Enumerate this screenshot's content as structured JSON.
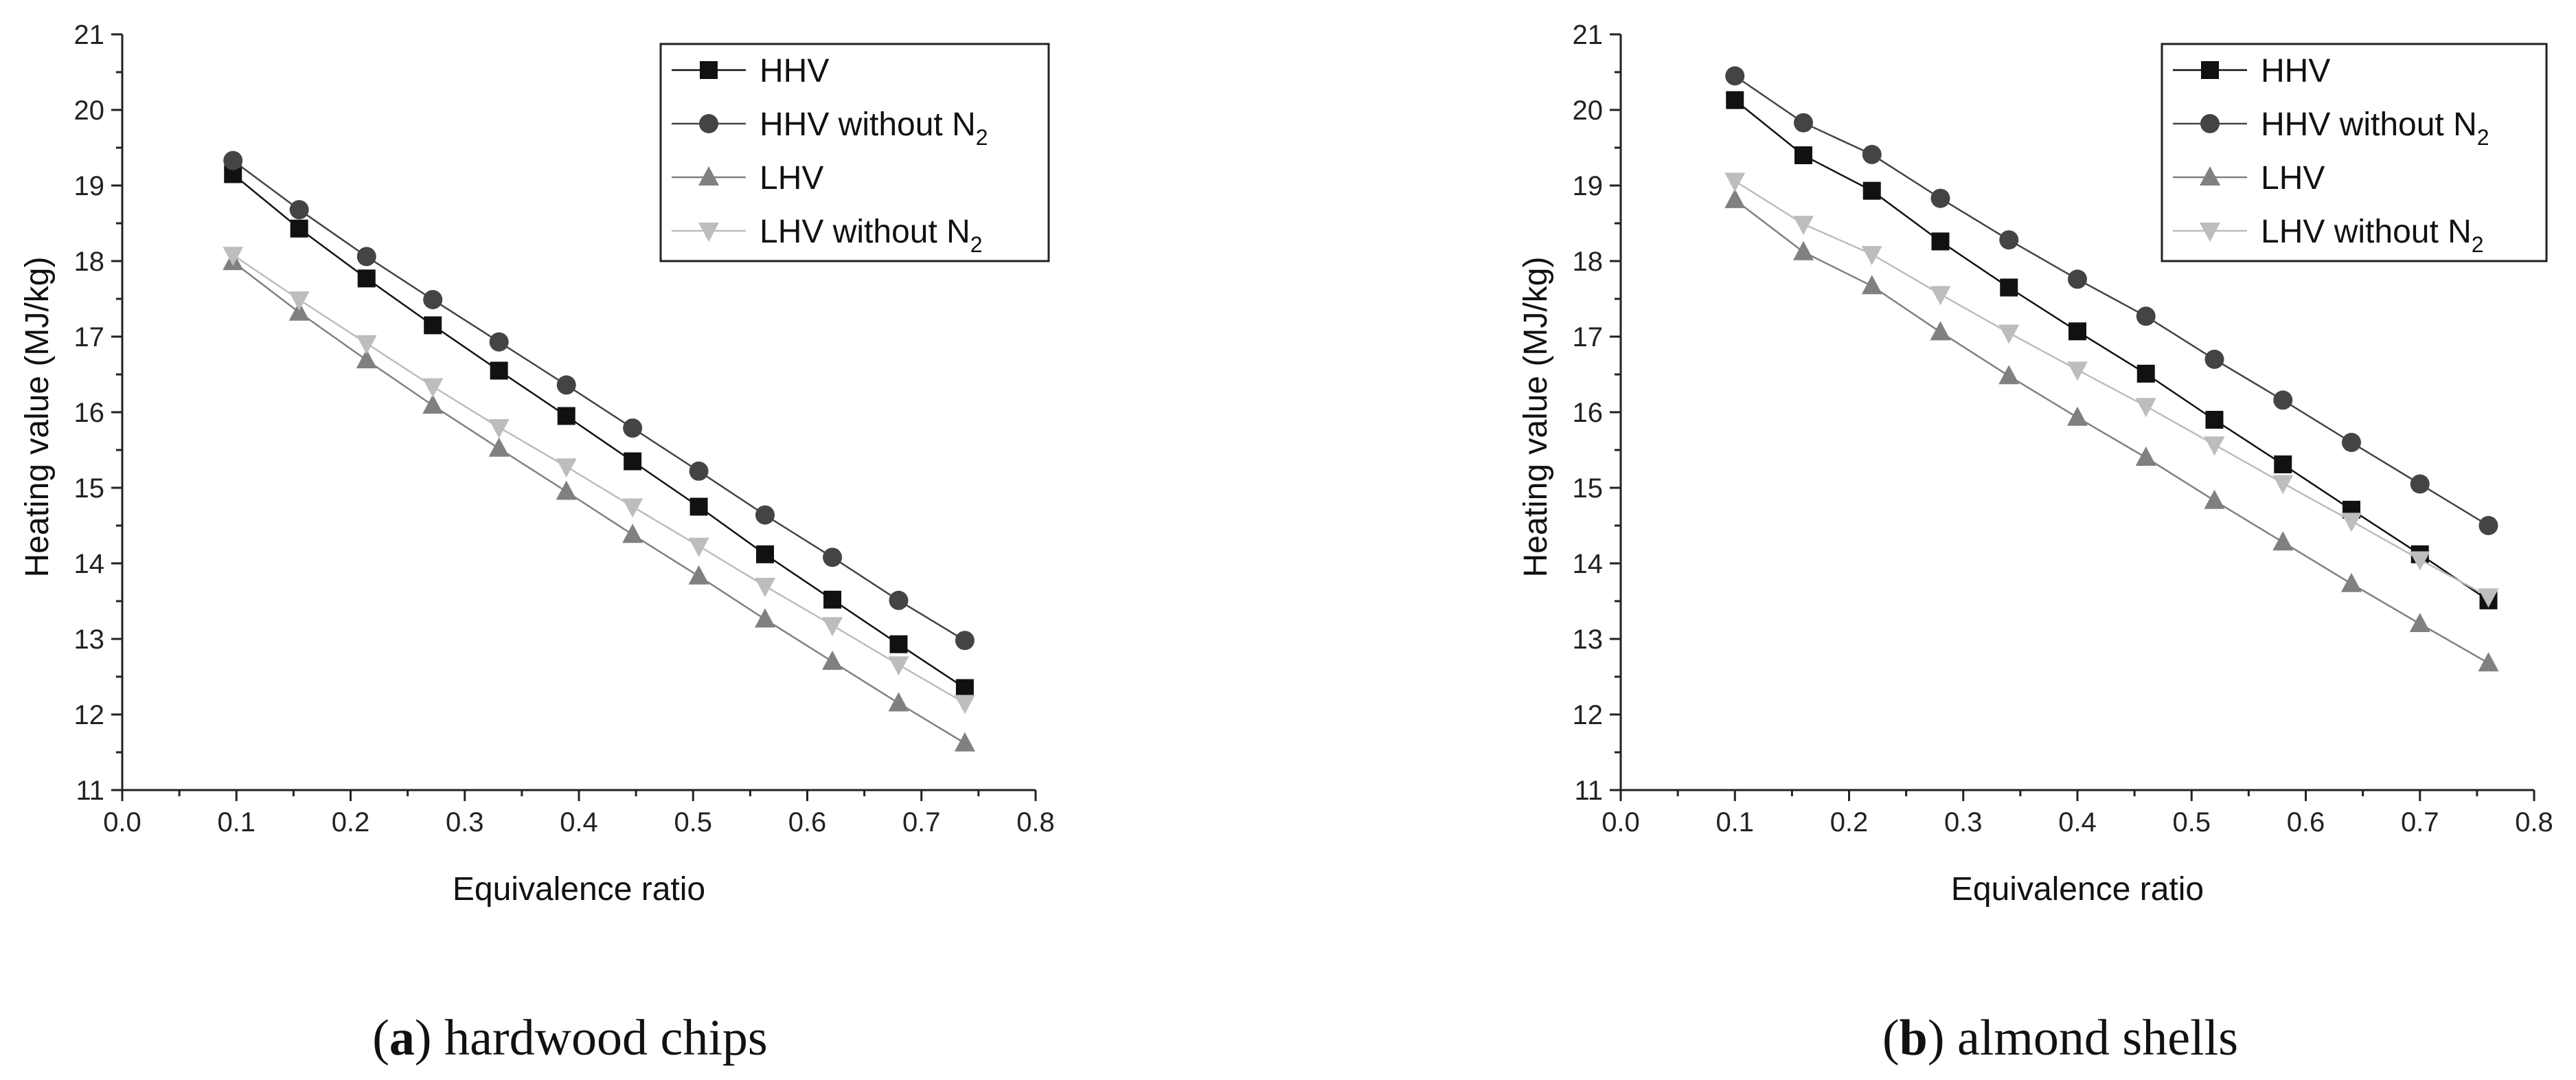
{
  "colors": {
    "HHV": "#111111",
    "HHV without N2": "#444444",
    "LHV": "#808080",
    "LHV without N2": "#bdbdbd",
    "axis": "#222222"
  },
  "chart_data": [
    {
      "type": "line",
      "title": "",
      "xlabel": "Equivalence ratio",
      "ylabel": "Heating value (MJ/kg)",
      "xlim": [
        0.0,
        0.8
      ],
      "ylim": [
        11,
        21
      ],
      "xticks": [
        "0.0",
        "0.1",
        "0.2",
        "0.3",
        "0.4",
        "0.5",
        "0.6",
        "0.7",
        "0.8"
      ],
      "yticks": [
        "11",
        "12",
        "13",
        "14",
        "15",
        "16",
        "17",
        "18",
        "19",
        "20",
        "21"
      ],
      "legend_position": "top-right",
      "caption": {
        "letter": "a",
        "text": "hardwood chips"
      },
      "x": [
        0.097,
        0.155,
        0.214,
        0.272,
        0.33,
        0.389,
        0.447,
        0.505,
        0.563,
        0.622,
        0.68,
        0.738
      ],
      "series": [
        {
          "name": "HHV",
          "label_base": "HHV",
          "label_sub": "",
          "marker": "square",
          "values": [
            19.15,
            18.43,
            17.77,
            17.15,
            16.55,
            15.95,
            15.35,
            14.75,
            14.12,
            13.52,
            12.93,
            12.35
          ]
        },
        {
          "name": "HHV without N2",
          "label_base": "HHV without N",
          "label_sub": "2",
          "marker": "circle",
          "values": [
            19.33,
            18.68,
            18.06,
            17.49,
            16.93,
            16.36,
            15.79,
            15.22,
            14.64,
            14.08,
            13.51,
            12.98
          ]
        },
        {
          "name": "LHV",
          "label_base": "LHV",
          "label_sub": "",
          "marker": "triangle-up",
          "values": [
            17.99,
            17.32,
            16.69,
            16.09,
            15.52,
            14.95,
            14.38,
            13.83,
            13.26,
            12.7,
            12.15,
            11.62
          ]
        },
        {
          "name": "LHV without N2",
          "label_base": "LHV without N",
          "label_sub": "2",
          "marker": "triangle-down",
          "values": [
            18.08,
            17.49,
            16.91,
            16.34,
            15.8,
            15.28,
            14.75,
            14.23,
            13.7,
            13.18,
            12.66,
            12.15
          ]
        }
      ]
    },
    {
      "type": "line",
      "title": "",
      "xlabel": "Equivalence ratio",
      "ylabel": "Heating value (MJ/kg)",
      "xlim": [
        0.0,
        0.8
      ],
      "ylim": [
        11,
        21
      ],
      "xticks": [
        "0.0",
        "0.1",
        "0.2",
        "0.3",
        "0.4",
        "0.5",
        "0.6",
        "0.7",
        "0.8"
      ],
      "yticks": [
        "11",
        "12",
        "13",
        "14",
        "15",
        "16",
        "17",
        "18",
        "19",
        "20",
        "21"
      ],
      "legend_position": "top-right",
      "caption": {
        "letter": "b",
        "text": "almond shells"
      },
      "x": [
        0.1,
        0.16,
        0.22,
        0.28,
        0.34,
        0.4,
        0.46,
        0.52,
        0.58,
        0.64,
        0.7,
        0.76
      ],
      "series": [
        {
          "name": "HHV",
          "label_base": "HHV",
          "label_sub": "",
          "marker": "square",
          "values": [
            20.13,
            19.4,
            18.93,
            18.26,
            17.65,
            17.07,
            16.51,
            15.9,
            15.31,
            14.71,
            14.12,
            13.51
          ]
        },
        {
          "name": "HHV without N2",
          "label_base": "HHV without N",
          "label_sub": "2",
          "marker": "circle",
          "values": [
            20.45,
            19.83,
            19.41,
            18.83,
            18.28,
            17.76,
            17.27,
            16.7,
            16.16,
            15.6,
            15.05,
            14.5
          ]
        },
        {
          "name": "LHV",
          "label_base": "LHV",
          "label_sub": "",
          "marker": "triangle-up",
          "values": [
            18.81,
            18.12,
            17.67,
            17.06,
            16.48,
            15.93,
            15.4,
            14.83,
            14.28,
            13.73,
            13.2,
            12.68
          ]
        },
        {
          "name": "LHV without N2",
          "label_base": "LHV without N",
          "label_sub": "2",
          "marker": "triangle-down",
          "values": [
            19.06,
            18.49,
            18.09,
            17.56,
            17.05,
            16.56,
            16.08,
            15.57,
            15.06,
            14.56,
            14.05,
            13.56
          ]
        }
      ]
    }
  ]
}
